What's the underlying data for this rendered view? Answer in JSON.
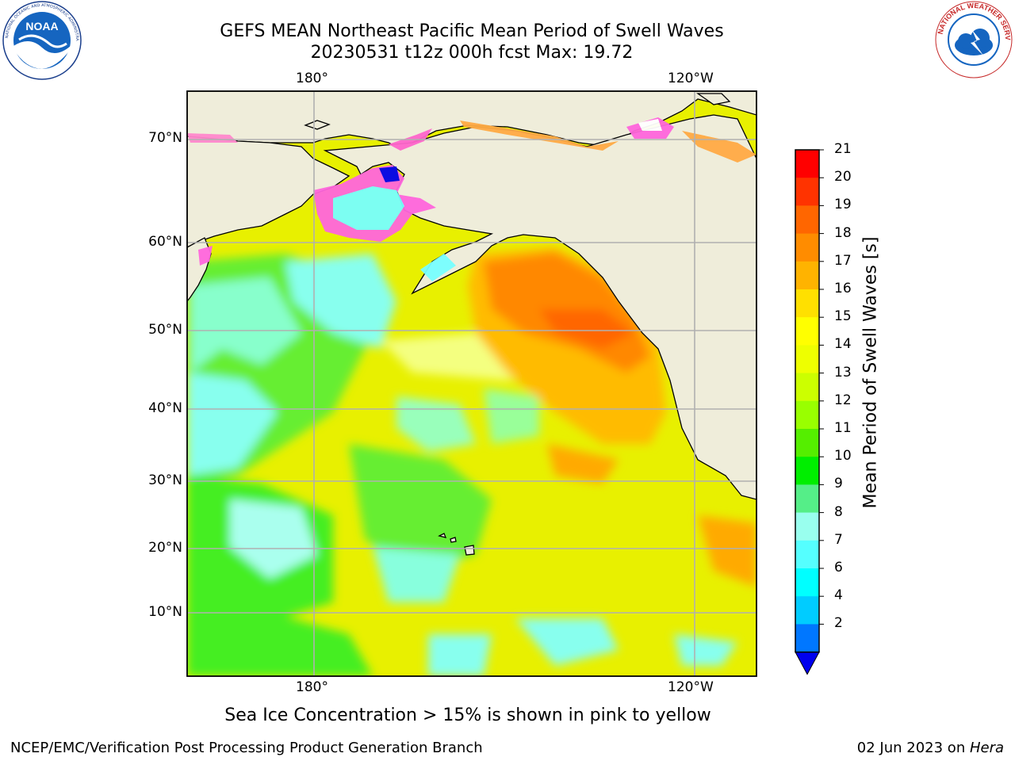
{
  "header": {
    "title_line1": "GEFS MEAN Northeast Pacific Mean Period of Swell Waves",
    "title_line2": "20230531 t12z 000h fcst   Max: 19.72"
  },
  "logos": {
    "noaa_text": "NOAA",
    "noaa_ring": "NATIONAL OCEANIC AND ATMOSPHERIC ADMINISTRATION · U.S. DEPARTMENT OF COMMERCE",
    "nws_ring": "NATIONAL WEATHER SERVICE"
  },
  "map": {
    "lon_labels_top": [
      "180°",
      "120°W"
    ],
    "lon_labels_bottom": [
      "180°",
      "120°W"
    ],
    "lat_labels": [
      "70°N",
      "60°N",
      "50°N",
      "40°N",
      "30°N",
      "20°N",
      "10°N"
    ]
  },
  "colorbar": {
    "label": "Mean Period of Swell Waves [s]",
    "ticks": [
      "21",
      "20",
      "19",
      "18",
      "17",
      "16",
      "15",
      "14",
      "13",
      "12",
      "11",
      "10",
      "9",
      "8",
      "7",
      "6",
      "4",
      "2"
    ],
    "colors": [
      "#ff0000",
      "#ff3300",
      "#ff6600",
      "#ff8c00",
      "#ffb300",
      "#ffe000",
      "#ffff00",
      "#eeff00",
      "#ccff00",
      "#99ff00",
      "#55ee00",
      "#00ee00",
      "#55ee88",
      "#99ffee",
      "#55ffff",
      "#00ffff",
      "#00ccff",
      "#0077ff"
    ],
    "extend_color": "#0000ee"
  },
  "note": "Sea Ice Concentration > 15% is shown in pink to yellow",
  "footer": {
    "left": "NCEP/EMC/Verification Post Processing Product Generation Branch",
    "right_prefix": "02 Jun 2023 on ",
    "right_host": "Hera"
  },
  "colors": {
    "land": "#efedda",
    "ocean_base": "#e8f000",
    "grid": "#b0b0b0"
  }
}
